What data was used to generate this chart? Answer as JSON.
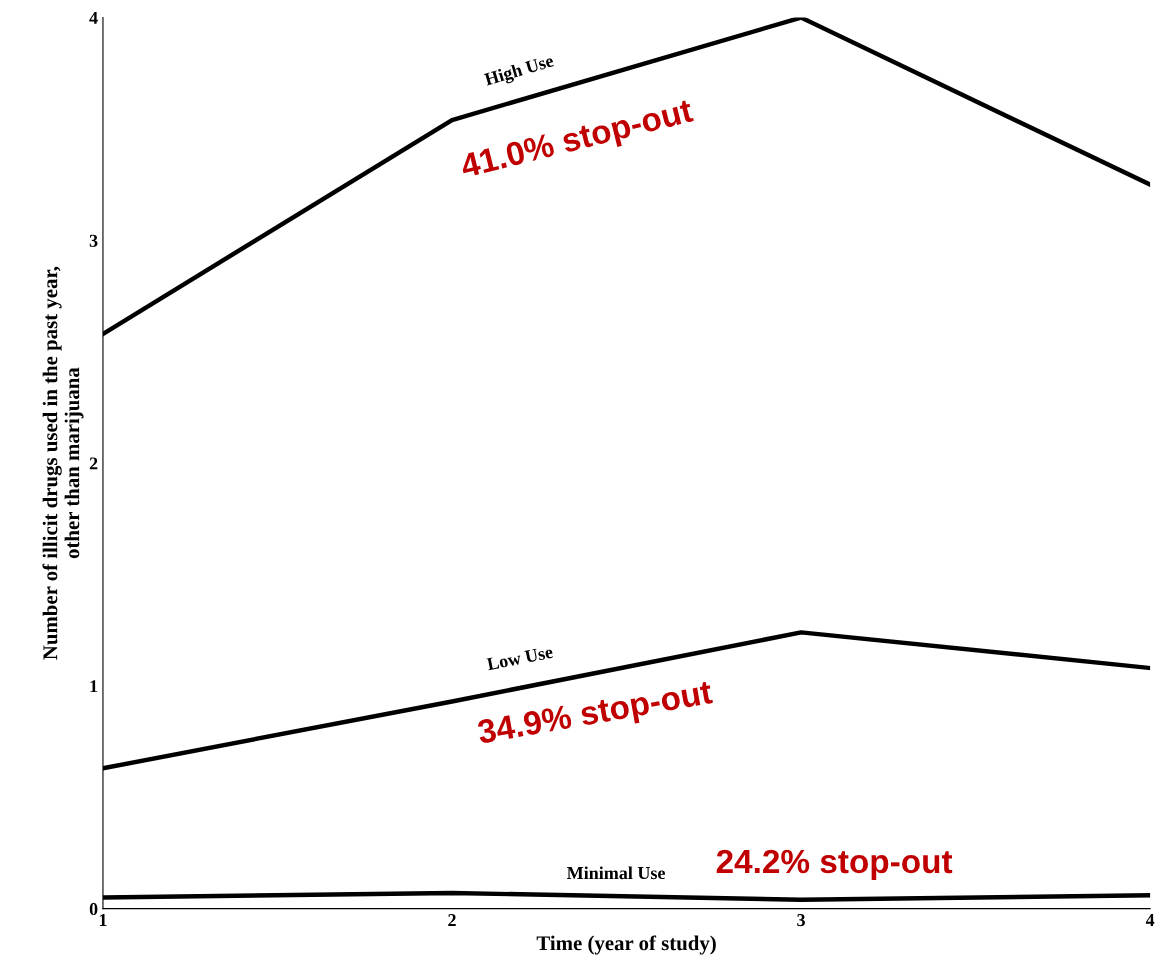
{
  "chart_data": {
    "type": "line",
    "xlabel": "Time (year of study)",
    "ylabel": "Number of illicit drugs used in the past year,\nother than marijuana",
    "x": [
      1,
      2,
      3,
      4
    ],
    "series": [
      {
        "name": "High Use",
        "color": "#000000",
        "values": [
          2.58,
          3.54,
          4.0,
          3.25
        ]
      },
      {
        "name": "Low Use",
        "color": "#000000",
        "values": [
          0.63,
          0.93,
          1.24,
          1.08
        ]
      },
      {
        "name": "Minimal Use",
        "color": "#000000",
        "values": [
          0.05,
          0.07,
          0.04,
          0.06
        ]
      }
    ],
    "xlim": [
      1,
      4
    ],
    "ylim": [
      0,
      4
    ],
    "xticks": [
      1,
      2,
      3,
      4
    ],
    "yticks": [
      0,
      1,
      2,
      3,
      4
    ],
    "grid": false,
    "legend": false,
    "marker": "none",
    "line_style": "solid",
    "annotations": [
      "41.0% stop-out",
      "34.9% stop-out",
      "24.2% stop-out"
    ]
  }
}
